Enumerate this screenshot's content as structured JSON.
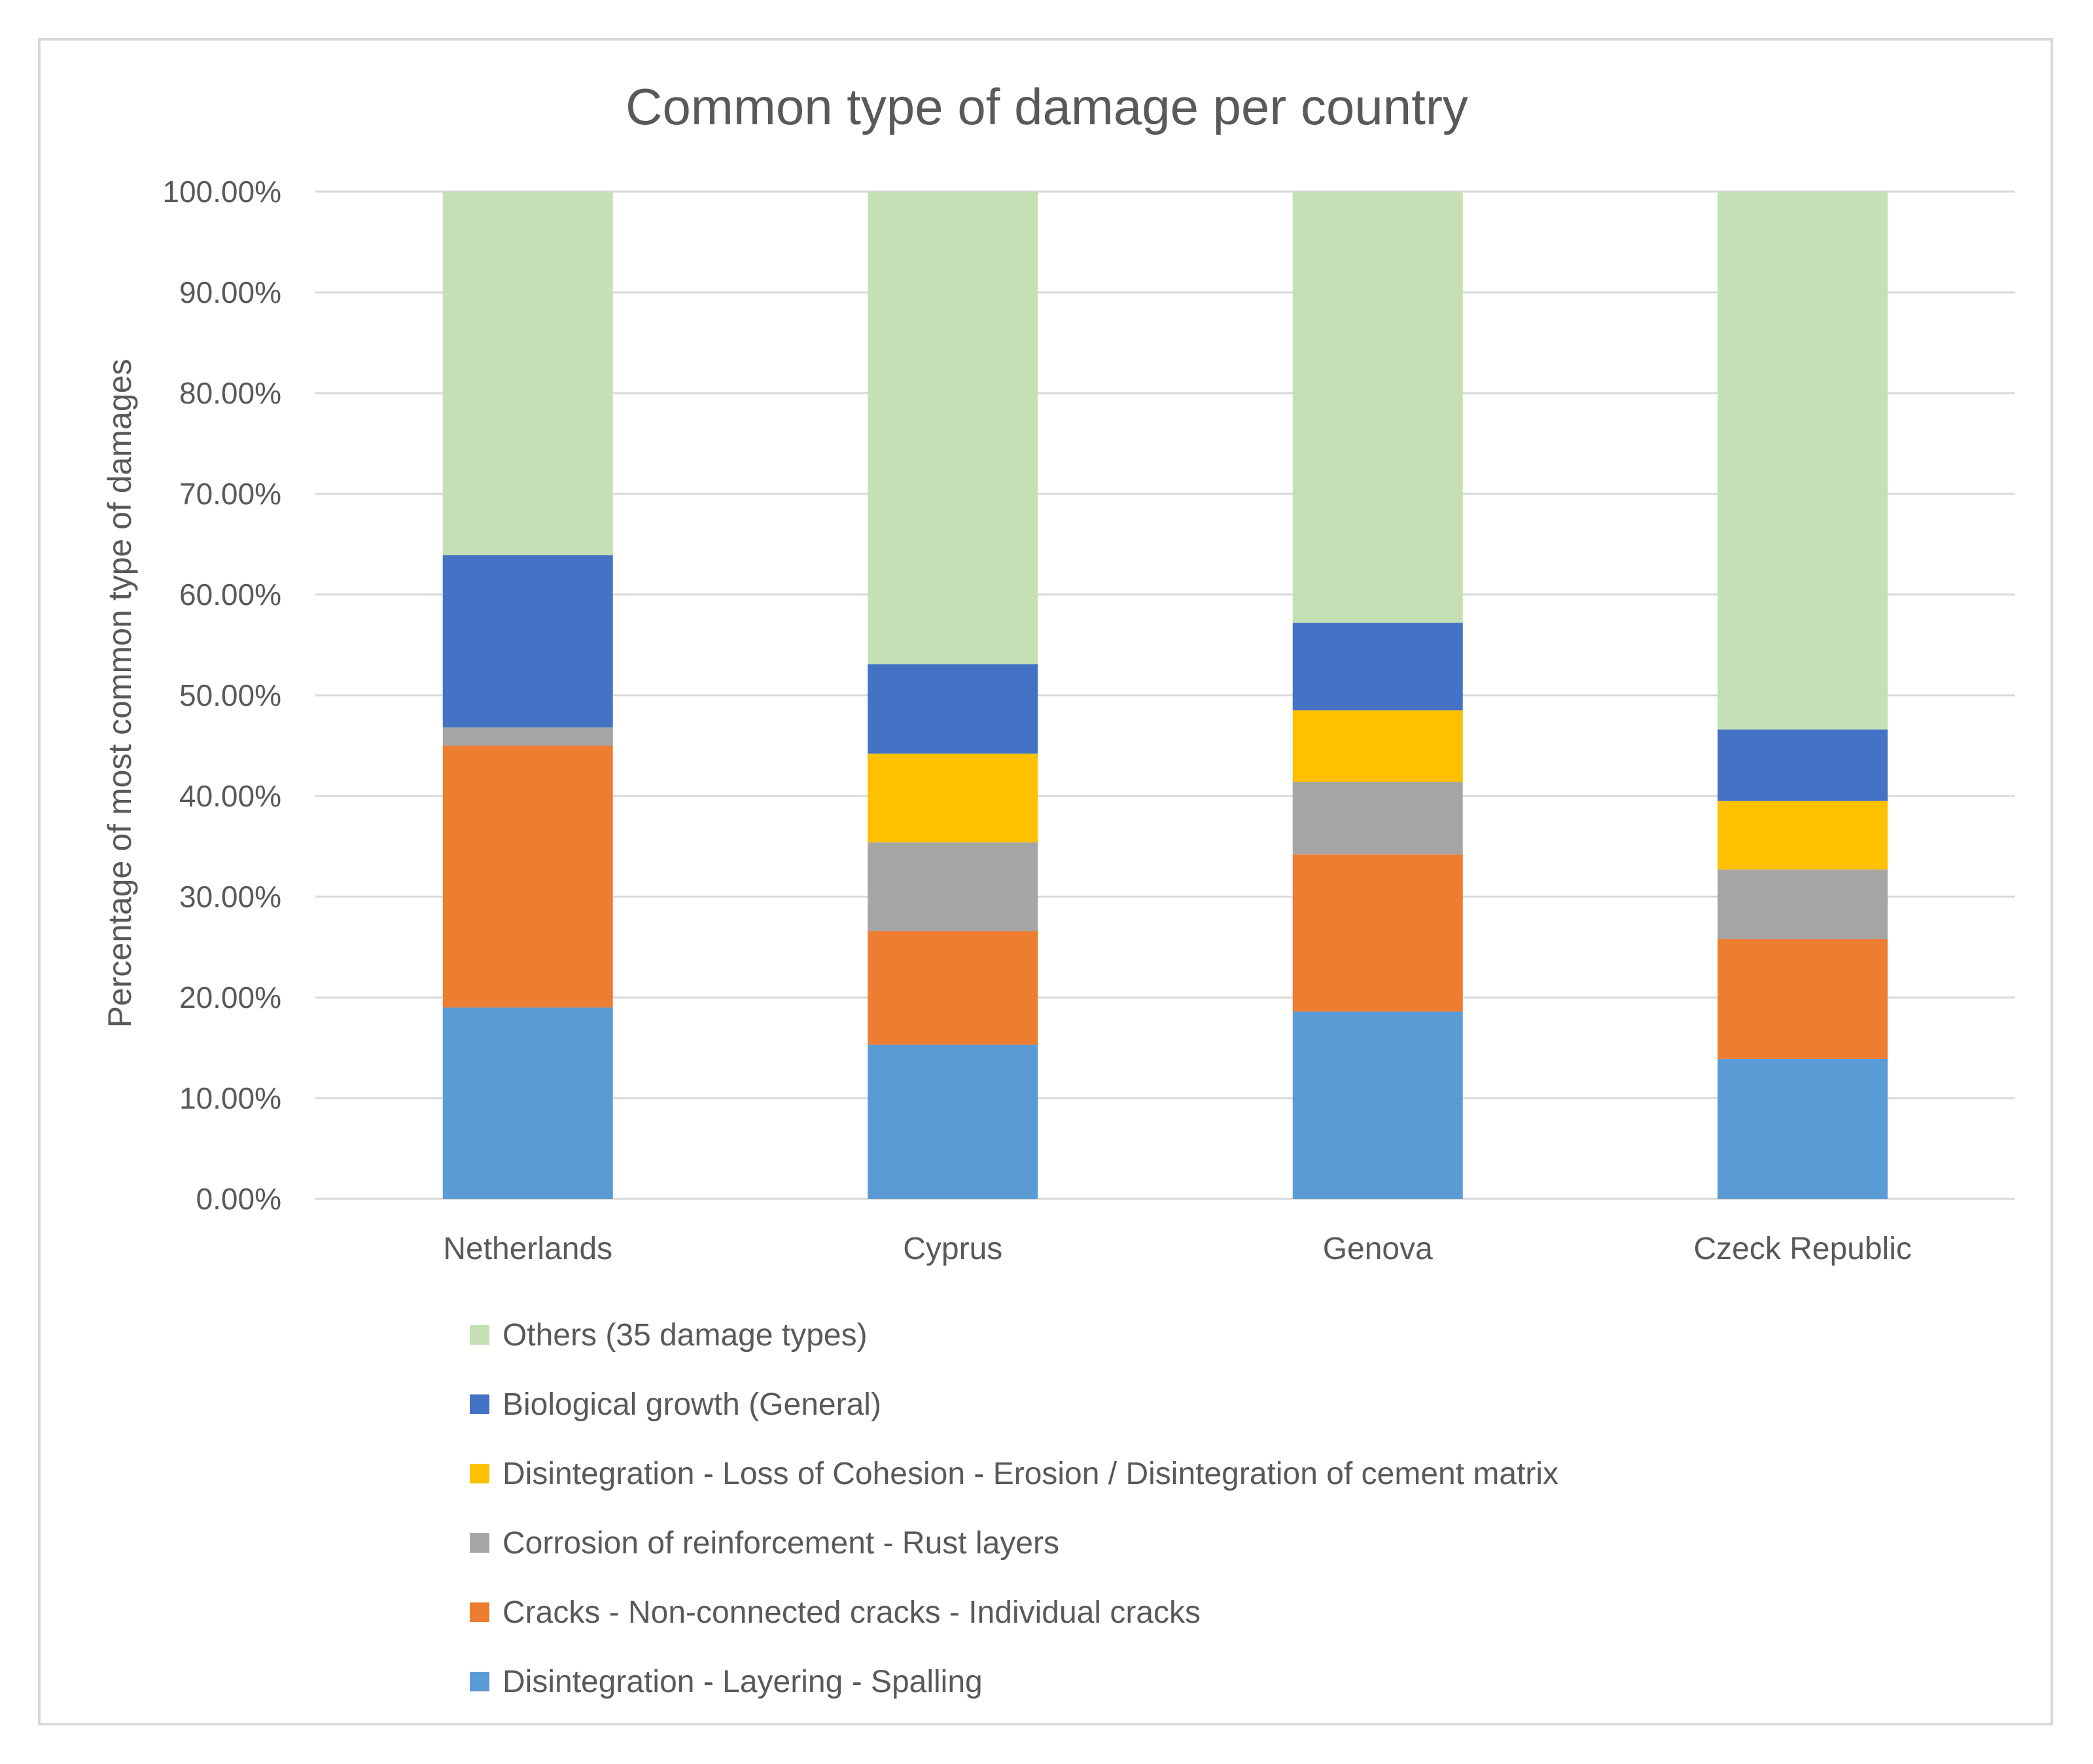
{
  "chart_data": {
    "type": "bar",
    "stacked": true,
    "title": "Common type of damage per country",
    "xlabel": "",
    "ylabel": "Percentage of most common type of damages",
    "ylim": [
      0,
      100
    ],
    "yticks": [
      "0.00%",
      "10.00%",
      "20.00%",
      "30.00%",
      "40.00%",
      "50.00%",
      "60.00%",
      "70.00%",
      "80.00%",
      "90.00%",
      "100.00%"
    ],
    "grid": true,
    "legend_position": "bottom",
    "categories": [
      "Netherlands",
      "Cyprus",
      "Genova",
      "Czeck Republic"
    ],
    "series": [
      {
        "name": "Disintegration - Layering - Spalling",
        "color": "#5b9bd5",
        "values": [
          19.0,
          15.3,
          18.6,
          13.9
        ]
      },
      {
        "name": "Cracks - Non-connected cracks - Individual cracks",
        "color": "#ed7d31",
        "values": [
          26.0,
          11.3,
          15.6,
          11.9
        ]
      },
      {
        "name": "Corrosion of reinforcement - Rust layers",
        "color": "#a5a5a5",
        "values": [
          1.8,
          8.8,
          7.2,
          6.9
        ]
      },
      {
        "name": "Disintegration - Loss of Cohesion - Erosion / Disintegration of cement matrix",
        "color": "#ffc000",
        "values": [
          0.0,
          8.8,
          7.1,
          6.8
        ]
      },
      {
        "name": "Biological growth (General)",
        "color": "#4472c4",
        "values": [
          17.1,
          8.9,
          8.7,
          7.1
        ]
      },
      {
        "name": "Others (35 damage types)",
        "color": "#c5e0b4",
        "values": [
          36.1,
          46.9,
          42.8,
          53.4
        ]
      }
    ]
  }
}
